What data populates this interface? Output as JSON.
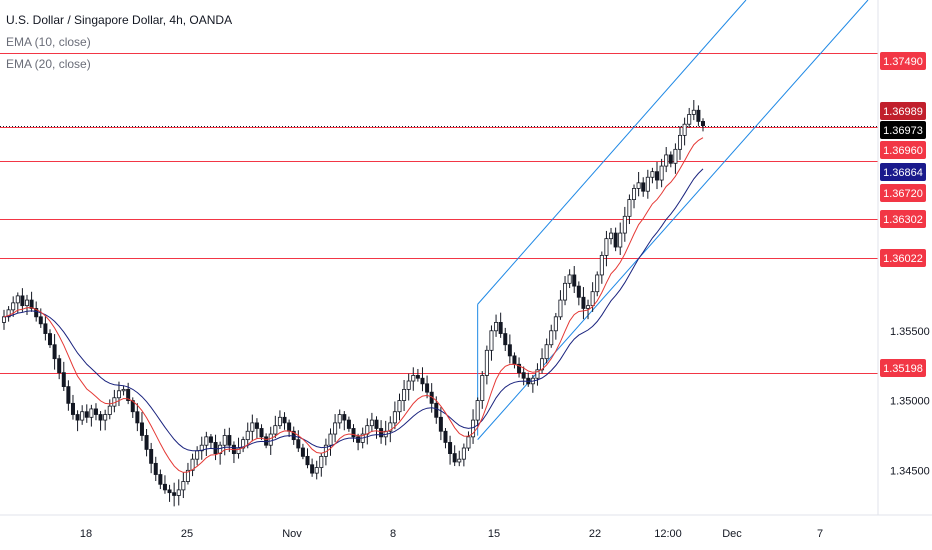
{
  "legend": {
    "title": "U.S. Dollar / Singapore Dollar, 4h, OANDA",
    "ema10": "EMA (10, close)",
    "ema20": "EMA (20, close)"
  },
  "colors": {
    "bull": "#ffffff",
    "bear": "#131722",
    "ema10": "#e53935",
    "ema20": "#1a237e",
    "channel": "#1e88e5",
    "hline": "#f23645",
    "price_badge": "#000000",
    "ema20_badge": "#1a1a8c",
    "grid": "#ffffff"
  },
  "chart_data": {
    "type": "candlestick",
    "title": "U.S. Dollar / Singapore Dollar, 4h, OANDA",
    "x_tick_labels": [
      "18",
      "25",
      "Nov",
      "8",
      "15",
      "22",
      "12:00",
      "Dec",
      "7"
    ],
    "y_tick_labels": [
      "1.35500",
      "1.35000",
      "1.34500"
    ],
    "ylim": [
      1.3418,
      1.3787
    ],
    "series": [
      {
        "name": "EMA (10, close)",
        "type": "line"
      },
      {
        "name": "EMA (20, close)",
        "type": "line"
      }
    ],
    "horizontal_levels": [
      1.3749,
      1.3696,
      1.3672,
      1.36302,
      1.36022,
      1.35198
    ],
    "price_badges": [
      {
        "value": "1.37490",
        "kind": "level"
      },
      {
        "value": "1.36989",
        "kind": "bar-close"
      },
      {
        "value": "1.36973",
        "kind": "last-price"
      },
      {
        "value": "1.36960",
        "kind": "level"
      },
      {
        "value": "1.36864",
        "kind": "ema20"
      },
      {
        "value": "1.36720",
        "kind": "level"
      },
      {
        "value": "1.36302",
        "kind": "level"
      },
      {
        "value": "1.36022",
        "kind": "level"
      },
      {
        "value": "1.35198",
        "kind": "level"
      }
    ],
    "channel": {
      "upper": [
        {
          "x": "Nov 12",
          "y": 1.3569
        },
        {
          "x": "Nov 28",
          "y": 1.3787
        }
      ],
      "lower": [
        {
          "x": "Nov 12",
          "y": 1.3472
        },
        {
          "x": "Dec 7",
          "y": 1.3787
        }
      ],
      "upper_parallel": [
        {
          "x": "Nov 12",
          "y": 1.3569
        },
        {
          "x": "Nov 12",
          "y": 1.3569
        }
      ]
    },
    "closes": [
      1.356,
      1.3565,
      1.357,
      1.3575,
      1.3568,
      1.3572,
      1.3566,
      1.356,
      1.3555,
      1.3548,
      1.354,
      1.353,
      1.352,
      1.351,
      1.3498,
      1.349,
      1.3486,
      1.3492,
      1.3488,
      1.3494,
      1.349,
      1.3486,
      1.349,
      1.3496,
      1.3502,
      1.3507,
      1.3508,
      1.35,
      1.3492,
      1.3484,
      1.3475,
      1.3465,
      1.3455,
      1.3447,
      1.344,
      1.3436,
      1.3434,
      1.3432,
      1.3436,
      1.3442,
      1.345,
      1.3458,
      1.3464,
      1.3468,
      1.3474,
      1.347,
      1.3462,
      1.3468,
      1.3475,
      1.3468,
      1.3462,
      1.3466,
      1.3472,
      1.3478,
      1.3484,
      1.348,
      1.3474,
      1.3468,
      1.3476,
      1.3482,
      1.3488,
      1.3484,
      1.3478,
      1.3472,
      1.3466,
      1.346,
      1.3454,
      1.3448,
      1.3452,
      1.346,
      1.3468,
      1.3476,
      1.3484,
      1.349,
      1.3486,
      1.348,
      1.3474,
      1.347,
      1.3476,
      1.3482,
      1.3486,
      1.348,
      1.3474,
      1.3478,
      1.3484,
      1.3492,
      1.35,
      1.3508,
      1.3514,
      1.3518,
      1.3516,
      1.3512,
      1.3506,
      1.3498,
      1.3488,
      1.3478,
      1.347,
      1.3462,
      1.3456,
      1.3458,
      1.3466,
      1.3474,
      1.3486,
      1.35,
      1.3518,
      1.3536,
      1.355,
      1.3556,
      1.3548,
      1.354,
      1.3532,
      1.3526,
      1.352,
      1.3516,
      1.3512,
      1.3516,
      1.3522,
      1.353,
      1.354,
      1.355,
      1.356,
      1.3572,
      1.3584,
      1.359,
      1.3582,
      1.3574,
      1.3566,
      1.3568,
      1.3578,
      1.359,
      1.3604,
      1.3616,
      1.362,
      1.361,
      1.362,
      1.3632,
      1.3644,
      1.3652,
      1.3656,
      1.365,
      1.366,
      1.3664,
      1.3658,
      1.3668,
      1.3676,
      1.367,
      1.368,
      1.369,
      1.3698,
      1.3705,
      1.3708,
      1.37,
      1.3697
    ]
  }
}
